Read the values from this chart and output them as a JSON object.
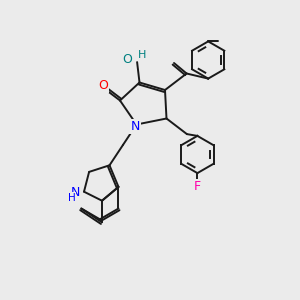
{
  "bg_color": "#ebebeb",
  "atom_colors": {
    "O": "#ff0000",
    "N": "#0000ff",
    "F": "#ff00aa",
    "H_oh": "#008080",
    "C": "#000000"
  },
  "bond_color": "#1a1a1a",
  "bond_width": 1.4
}
